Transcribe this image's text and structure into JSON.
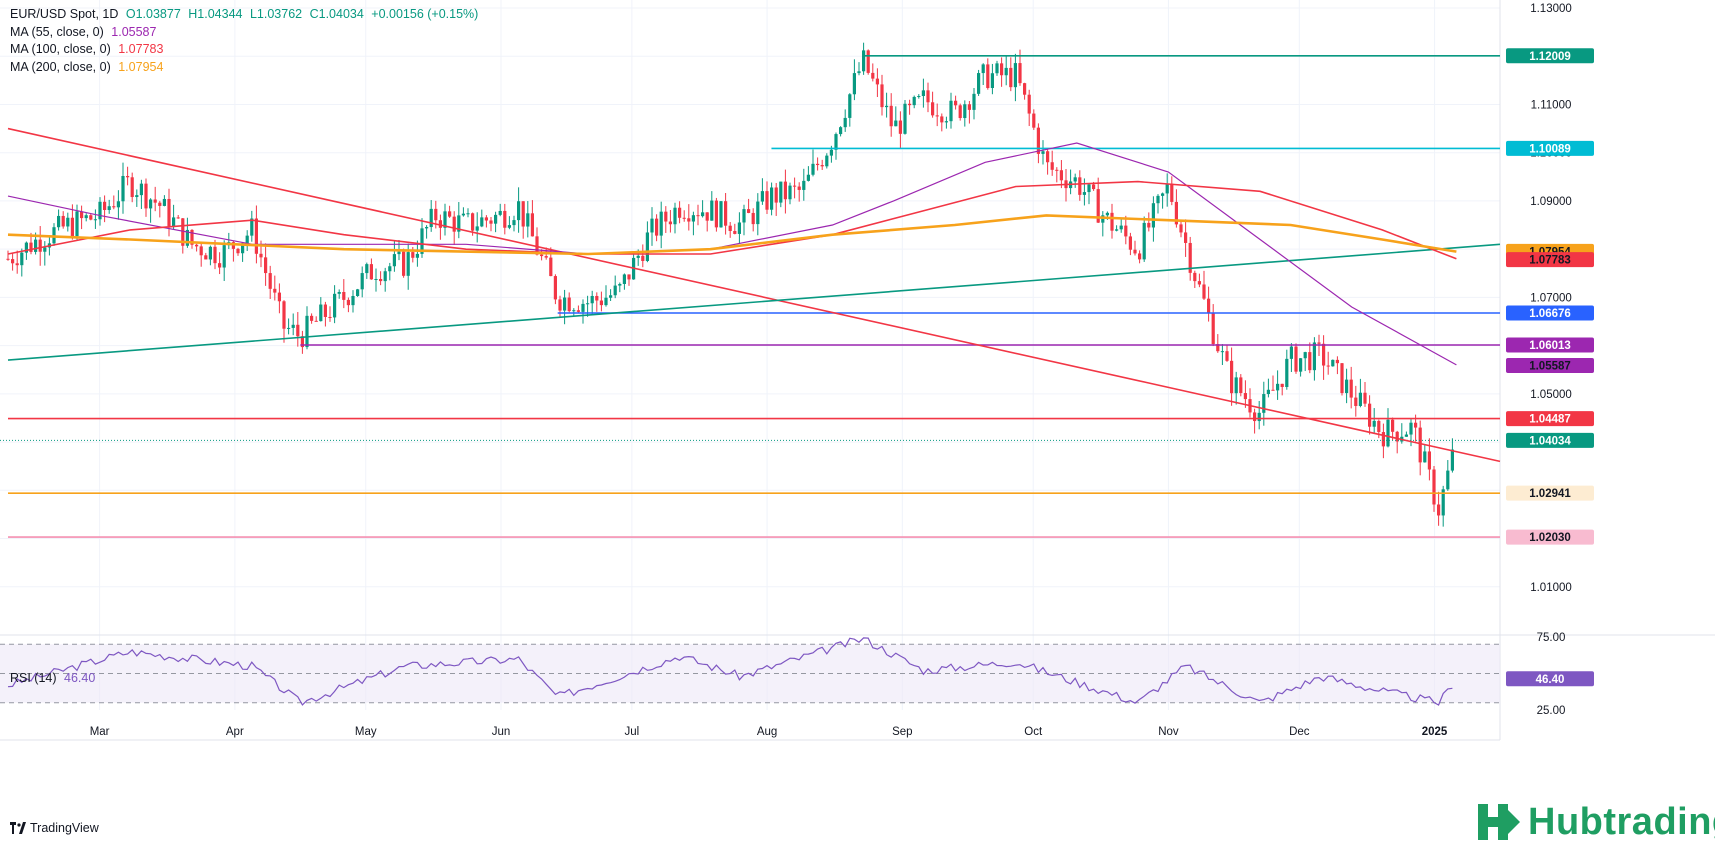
{
  "header": {
    "symbol_line": "EUR/USD Spot, 1D",
    "ohlc": {
      "o": "O1.03877",
      "h": "H1.04344",
      "l": "L1.03762",
      "c": "C1.04034",
      "chg": "+0.00156 (+0.15%)"
    },
    "ma": [
      {
        "label": "MA (55, close, 0)",
        "value": "1.05587",
        "color": "#9c27b0"
      },
      {
        "label": "MA (100, close, 0)",
        "value": "1.07783",
        "color": "#f23645"
      },
      {
        "label": "MA (200, close, 0)",
        "value": "1.07954",
        "color": "#f7a21b"
      }
    ]
  },
  "chart_data": {
    "type": "candlestick",
    "symbol": "EUR/USD Spot",
    "timeframe": "1D",
    "ylim": [
      1.0,
      1.13
    ],
    "y_ticks": [
      "1.13000",
      "1.11000",
      "1.10000",
      "1.09000",
      "1.07000",
      "1.05000",
      "1.01000"
    ],
    "x_ticks": [
      "Mar",
      "Apr",
      "May",
      "Jun",
      "Jul",
      "Aug",
      "Sep",
      "Oct",
      "Nov",
      "Dec",
      "2025"
    ],
    "close_path": [
      [
        "Feb 09",
        1.078
      ],
      [
        "Feb 16",
        1.082
      ],
      [
        "Feb 23",
        1.085
      ],
      [
        "Mar 01",
        1.087
      ],
      [
        "Mar 08",
        1.094
      ],
      [
        "Mar 15",
        1.089
      ],
      [
        "Mar 22",
        1.081
      ],
      [
        "Mar 29",
        1.079
      ],
      [
        "Apr 05",
        1.084
      ],
      [
        "Apr 12",
        1.064
      ],
      [
        "Apr 16",
        1.062
      ],
      [
        "Apr 26",
        1.07
      ],
      [
        "May 03",
        1.076
      ],
      [
        "May 10",
        1.077
      ],
      [
        "May 17",
        1.087
      ],
      [
        "May 24",
        1.085
      ],
      [
        "Jun 01",
        1.087
      ],
      [
        "Jun 05",
        1.089
      ],
      [
        "Jun 14",
        1.07
      ],
      [
        "Jun 21",
        1.069
      ],
      [
        "Jun 28",
        1.071
      ],
      [
        "Jul 05",
        1.083
      ],
      [
        "Jul 12",
        1.089
      ],
      [
        "Jul 19",
        1.088
      ],
      [
        "Jul 26",
        1.085
      ],
      [
        "Aug 02",
        1.091
      ],
      [
        "Aug 09",
        1.092
      ],
      [
        "Aug 16",
        1.103
      ],
      [
        "Aug 23",
        1.119
      ],
      [
        "Aug 30",
        1.105
      ],
      [
        "Sep 06",
        1.111
      ],
      [
        "Sep 13",
        1.108
      ],
      [
        "Sep 20",
        1.116
      ],
      [
        "Sep 27",
        1.116
      ],
      [
        "Oct 04",
        1.097
      ],
      [
        "Oct 11",
        1.094
      ],
      [
        "Oct 18",
        1.086
      ],
      [
        "Oct 25",
        1.08
      ],
      [
        "Nov 01",
        1.093
      ],
      [
        "Nov 08",
        1.072
      ],
      [
        "Nov 15",
        1.053
      ],
      [
        "Nov 22",
        1.046
      ],
      [
        "Nov 29",
        1.057
      ],
      [
        "Dec 06",
        1.058
      ],
      [
        "Dec 13",
        1.05
      ],
      [
        "Dec 20",
        1.042
      ],
      [
        "Dec 27",
        1.043
      ],
      [
        "Jan 02",
        1.026
      ],
      [
        "Jan 06",
        1.04
      ]
    ],
    "moving_averages": [
      {
        "name": "MA 55",
        "last": 1.05587,
        "points": [
          [
            "Feb 09",
            1.091
          ],
          [
            "Mar 01",
            1.087
          ],
          [
            "Apr 05",
            1.081
          ],
          [
            "Apr 26",
            1.081
          ],
          [
            "May 24",
            1.081
          ],
          [
            "Jun 21",
            1.079
          ],
          [
            "Jul 19",
            1.08
          ],
          [
            "Aug 16",
            1.085
          ],
          [
            "Aug 30",
            1.09
          ],
          [
            "Sep 20",
            1.098
          ],
          [
            "Oct 11",
            1.102
          ],
          [
            "Nov 01",
            1.096
          ],
          [
            "Nov 22",
            1.082
          ],
          [
            "Dec 13",
            1.068
          ],
          [
            "Jan 06",
            1.056
          ]
        ]
      },
      {
        "name": "MA 100",
        "last": 1.07783,
        "points": [
          [
            "Feb 09",
            1.079
          ],
          [
            "Mar 08",
            1.084
          ],
          [
            "Apr 05",
            1.086
          ],
          [
            "Apr 26",
            1.083
          ],
          [
            "May 24",
            1.08
          ],
          [
            "Jun 21",
            1.079
          ],
          [
            "Jul 19",
            1.079
          ],
          [
            "Aug 16",
            1.083
          ],
          [
            "Sep 06",
            1.088
          ],
          [
            "Sep 27",
            1.093
          ],
          [
            "Oct 25",
            1.094
          ],
          [
            "Nov 22",
            1.092
          ],
          [
            "Dec 20",
            1.084
          ],
          [
            "Jan 06",
            1.078
          ]
        ]
      },
      {
        "name": "MA 200",
        "last": 1.07954,
        "points": [
          [
            "Feb 09",
            1.083
          ],
          [
            "Mar 08",
            1.082
          ],
          [
            "Apr 26",
            1.08
          ],
          [
            "Jun 21",
            1.079
          ],
          [
            "Jul 19",
            1.08
          ],
          [
            "Aug 16",
            1.083
          ],
          [
            "Sep 13",
            1.085
          ],
          [
            "Oct 04",
            1.087
          ],
          [
            "Nov 01",
            1.086
          ],
          [
            "Nov 29",
            1.085
          ],
          [
            "Dec 20",
            1.082
          ],
          [
            "Jan 06",
            1.0795
          ]
        ]
      }
    ],
    "trendlines": [
      {
        "name": "descending-resistance",
        "from": [
          "Feb 09",
          1.105
        ],
        "to": [
          "Jan 16",
          1.036
        ],
        "color": "#f23645"
      },
      {
        "name": "ascending-support",
        "from": [
          "Feb 09",
          1.057
        ],
        "to": [
          "Jan 16",
          1.081
        ],
        "color": "#089981"
      }
    ],
    "levels": [
      {
        "value": 1.12009,
        "label": "1.12009",
        "color": "#089981",
        "from": "Aug 23"
      },
      {
        "value": 1.10089,
        "label": "1.10089",
        "color": "#00bcd4",
        "from": "Aug 02"
      },
      {
        "value": 1.06676,
        "label": "1.06676",
        "color": "#2962ff",
        "from": "Jun 14"
      },
      {
        "value": 1.06013,
        "label": "1.06013",
        "color": "#9c27b0",
        "from": "Apr 16"
      },
      {
        "value": 1.04487,
        "label": "1.04487",
        "color": "#f23645",
        "from": "start"
      },
      {
        "value": 1.02941,
        "label": "1.02941",
        "color": "#f7a21b",
        "from": "start"
      },
      {
        "value": 1.0203,
        "label": "1.02030",
        "color": "#f48fb1",
        "from": "start"
      }
    ],
    "last_price": {
      "value": 1.04034,
      "label": "1.04034",
      "color": "#089981"
    },
    "ma_tags": [
      {
        "value": 1.07954,
        "label": "1.07954",
        "color": "#f7a21b"
      },
      {
        "value": 1.07783,
        "label": "1.07783",
        "color": "#f23645"
      },
      {
        "value": 1.05587,
        "label": "1.05587",
        "color": "#9c27b0"
      }
    ],
    "rsi": {
      "label": "RSI (14)",
      "value": "46.40",
      "color": "#7e57c2",
      "ylim": [
        25,
        75
      ],
      "ticks": [
        "75.00",
        "25.00"
      ],
      "bands": [
        30,
        50,
        70
      ],
      "points": [
        [
          "Feb 09",
          42
        ],
        [
          "Mar 08",
          65
        ],
        [
          "Apr 05",
          55
        ],
        [
          "Apr 16",
          30
        ],
        [
          "May 10",
          55
        ],
        [
          "Jun 05",
          60
        ],
        [
          "Jun 14",
          34
        ],
        [
          "Jul 12",
          62
        ],
        [
          "Jul 26",
          48
        ],
        [
          "Aug 23",
          74
        ],
        [
          "Sep 06",
          52
        ],
        [
          "Sep 27",
          58
        ],
        [
          "Oct 25",
          30
        ],
        [
          "Nov 05",
          55
        ],
        [
          "Nov 22",
          30
        ],
        [
          "Dec 06",
          48
        ],
        [
          "Dec 20",
          38
        ],
        [
          "Jan 02",
          30
        ],
        [
          "Jan 06",
          46.4
        ]
      ]
    },
    "grid": true
  },
  "footer": {
    "tradingview": "TradingView",
    "brand": "Hubtrading"
  }
}
